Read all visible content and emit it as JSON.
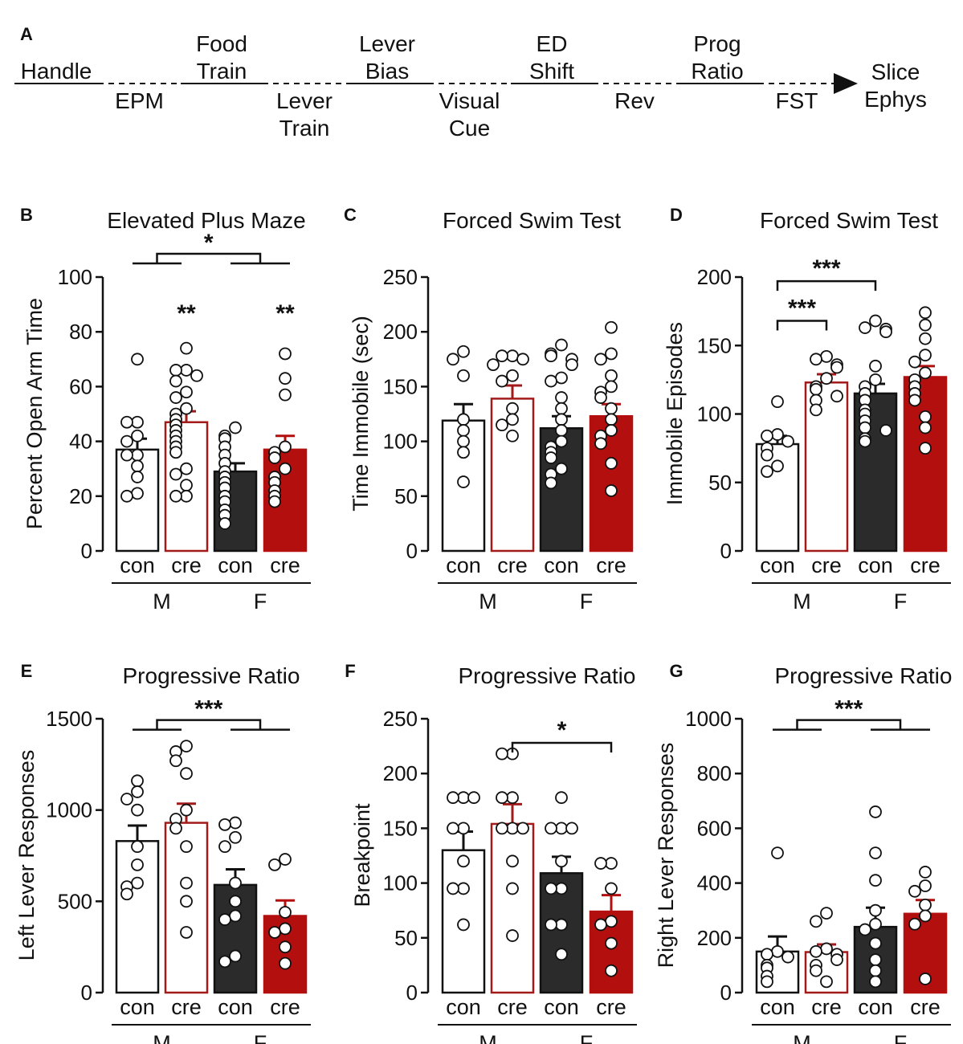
{
  "colors": {
    "ink": "#111111",
    "male_con_fill": "#ffffff",
    "male_cre_fill": "#ffffff",
    "male_cre_stroke": "#a31a1a",
    "female_con_fill": "#2b2b2b",
    "female_cre_fill": "#b30f0f"
  },
  "timeline": {
    "panel_label": "A",
    "top_steps": [
      {
        "lines": [
          "Handle"
        ]
      },
      {
        "lines": [
          "Food",
          "Train"
        ]
      },
      {
        "lines": [
          "Lever",
          "Bias"
        ]
      },
      {
        "lines": [
          "ED",
          "Shift"
        ]
      },
      {
        "lines": [
          "Prog",
          "Ratio"
        ]
      }
    ],
    "bottom_steps": [
      {
        "lines": [
          "EPM"
        ]
      },
      {
        "lines": [
          "Lever",
          "Train"
        ]
      },
      {
        "lines": [
          "Visual",
          "Cue"
        ]
      },
      {
        "lines": [
          "Rev"
        ]
      },
      {
        "lines": [
          "FST"
        ]
      }
    ],
    "final_step": {
      "lines": [
        "Slice",
        "Ephys"
      ]
    }
  },
  "chart_data": [
    {
      "panel_label": "B",
      "type": "bar",
      "title": "Elevated Plus Maze",
      "ylabel": "Percent Open Arm Time",
      "ylim": [
        0,
        100
      ],
      "yticks": [
        0,
        20,
        40,
        60,
        80,
        100
      ],
      "categories": [
        "con",
        "cre",
        "con",
        "cre"
      ],
      "groups": [
        "M",
        "F"
      ],
      "series": [
        {
          "name": "M con",
          "mean": 37,
          "sem": 4,
          "points": [
            70,
            47,
            47,
            42,
            40,
            35,
            35,
            31,
            27,
            21,
            20
          ]
        },
        {
          "name": "M cre",
          "mean": 47,
          "sem": 4,
          "points": [
            74,
            66,
            66,
            64,
            62,
            58,
            56,
            52,
            50,
            48,
            46,
            44,
            42,
            40,
            38,
            36,
            30,
            28,
            24,
            20,
            20
          ]
        },
        {
          "name": "F con",
          "mean": 29,
          "sem": 3,
          "points": [
            45,
            42,
            41,
            38,
            35,
            32,
            29,
            27,
            25,
            23,
            20,
            18,
            15,
            13,
            10
          ]
        },
        {
          "name": "F cre",
          "mean": 37,
          "sem": 5,
          "points": [
            72,
            63,
            57,
            38,
            36,
            34,
            30,
            27,
            25,
            22,
            20,
            18
          ]
        }
      ],
      "annotations": [
        {
          "kind": "group_bracket",
          "text": "*",
          "y": 105
        },
        {
          "kind": "star",
          "series": 1,
          "text": "**",
          "y": 88
        },
        {
          "kind": "star",
          "series": 3,
          "text": "**",
          "y": 88
        }
      ]
    },
    {
      "panel_label": "C",
      "type": "bar",
      "title": "Forced Swim Test",
      "ylabel": "Time Immobile (sec)",
      "ylim": [
        0,
        250
      ],
      "yticks": [
        0,
        50,
        100,
        150,
        200,
        250
      ],
      "categories": [
        "con",
        "cre",
        "con",
        "cre"
      ],
      "groups": [
        "M",
        "F"
      ],
      "series": [
        {
          "name": "M con",
          "mean": 119,
          "sem": 15,
          "points": [
            182,
            175,
            160,
            120,
            110,
            100,
            90,
            63
          ]
        },
        {
          "name": "M cre",
          "mean": 139,
          "sem": 12,
          "points": [
            178,
            178,
            175,
            170,
            160,
            155,
            130,
            120,
            115,
            105
          ]
        },
        {
          "name": "F con",
          "mean": 112,
          "sem": 11,
          "points": [
            188,
            180,
            178,
            175,
            170,
            158,
            155,
            140,
            130,
            120,
            110,
            100,
            95,
            90,
            85,
            75,
            70,
            62
          ]
        },
        {
          "name": "F cre",
          "mean": 123,
          "sem": 11,
          "points": [
            204,
            180,
            175,
            160,
            150,
            145,
            140,
            130,
            120,
            110,
            105,
            98,
            80,
            55
          ]
        }
      ],
      "annotations": []
    },
    {
      "panel_label": "D",
      "type": "bar",
      "title": "Forced Swim Test",
      "ylabel": "Immobile Episodes",
      "ylim": [
        0,
        200
      ],
      "yticks": [
        0,
        50,
        100,
        150,
        200
      ],
      "categories": [
        "con",
        "cre",
        "con",
        "cre"
      ],
      "groups": [
        "M",
        "F"
      ],
      "series": [
        {
          "name": "M con",
          "mean": 78,
          "sem": 6,
          "points": [
            109,
            85,
            84,
            80,
            75,
            70,
            62,
            58
          ]
        },
        {
          "name": "M cre",
          "mean": 123,
          "sem": 6,
          "points": [
            142,
            140,
            136,
            134,
            126,
            120,
            118,
            113,
            110,
            103
          ]
        },
        {
          "name": "F con",
          "mean": 115,
          "sem": 7,
          "points": [
            168,
            163,
            162,
            160,
            135,
            125,
            120,
            115,
            110,
            103,
            100,
            95,
            90,
            88,
            82,
            80
          ]
        },
        {
          "name": "F cre",
          "mean": 127,
          "sem": 8,
          "points": [
            174,
            165,
            155,
            143,
            138,
            130,
            125,
            120,
            115,
            110,
            98,
            90,
            75
          ]
        }
      ],
      "annotations": [
        {
          "kind": "pair_bracket",
          "from": 0,
          "to": 2,
          "text": "***",
          "y": 197
        },
        {
          "kind": "pair_bracket",
          "from": 0,
          "to": 1,
          "text": "***",
          "y": 168
        }
      ]
    },
    {
      "panel_label": "E",
      "type": "bar",
      "title": "Progressive Ratio",
      "ylabel": "Left Lever Responses",
      "ylim": [
        0,
        1500
      ],
      "yticks": [
        0,
        500,
        1000,
        1500
      ],
      "categories": [
        "con",
        "cre",
        "con",
        "cre"
      ],
      "groups": [
        "M",
        "F"
      ],
      "series": [
        {
          "name": "M con",
          "mean": 830,
          "sem": 85,
          "points": [
            1160,
            1100,
            1060,
            1000,
            800,
            700,
            600,
            580,
            540
          ]
        },
        {
          "name": "M cre",
          "mean": 930,
          "sem": 105,
          "points": [
            1350,
            1320,
            1270,
            1200,
            1000,
            950,
            900,
            800,
            600,
            500,
            330
          ]
        },
        {
          "name": "F con",
          "mean": 590,
          "sem": 85,
          "points": [
            930,
            920,
            850,
            800,
            600,
            500,
            420,
            400,
            200,
            170
          ]
        },
        {
          "name": "F cre",
          "mean": 420,
          "sem": 85,
          "points": [
            730,
            700,
            440,
            350,
            330,
            250,
            160
          ]
        }
      ],
      "annotations": [
        {
          "kind": "group_bracket",
          "text": "***",
          "y": 1440
        }
      ]
    },
    {
      "panel_label": "F",
      "type": "bar",
      "title": "Progressive Ratio",
      "ylabel": "Breakpoint",
      "ylim": [
        0,
        250
      ],
      "yticks": [
        0,
        50,
        100,
        150,
        200,
        250
      ],
      "categories": [
        "con",
        "cre",
        "con",
        "cre"
      ],
      "groups": [
        "M",
        "F"
      ],
      "series": [
        {
          "name": "M con",
          "mean": 130,
          "sem": 17,
          "points": [
            178,
            178,
            178,
            150,
            150,
            120,
            95,
            95,
            62
          ]
        },
        {
          "name": "M cre",
          "mean": 154,
          "sem": 18,
          "points": [
            218,
            218,
            178,
            178,
            150,
            150,
            150,
            120,
            95,
            52
          ]
        },
        {
          "name": "F con",
          "mean": 109,
          "sem": 15,
          "points": [
            178,
            150,
            150,
            150,
            120,
            95,
            95,
            62,
            62,
            35
          ]
        },
        {
          "name": "F cre",
          "mean": 74,
          "sem": 15,
          "points": [
            118,
            118,
            95,
            65,
            62,
            45,
            20
          ]
        }
      ],
      "annotations": [
        {
          "kind": "pair_bracket",
          "from": 1,
          "to": 3,
          "text": "*",
          "y": 228
        }
      ]
    },
    {
      "panel_label": "G",
      "type": "bar",
      "title": "Progressive Ratio",
      "ylabel": "Right Lever Responses",
      "ylim": [
        0,
        1000
      ],
      "yticks": [
        0,
        200,
        400,
        600,
        800,
        1000
      ],
      "categories": [
        "con",
        "cre",
        "con",
        "cre"
      ],
      "groups": [
        "M",
        "F"
      ],
      "series": [
        {
          "name": "M con",
          "mean": 150,
          "sem": 55,
          "points": [
            510,
            150,
            140,
            130,
            100,
            90,
            60,
            40
          ]
        },
        {
          "name": "M cre",
          "mean": 148,
          "sem": 28,
          "points": [
            290,
            260,
            160,
            150,
            140,
            120,
            100,
            80,
            40
          ]
        },
        {
          "name": "F con",
          "mean": 240,
          "sem": 70,
          "points": [
            660,
            510,
            410,
            300,
            250,
            230,
            180,
            120,
            80,
            40
          ]
        },
        {
          "name": "F cre",
          "mean": 288,
          "sem": 50,
          "points": [
            440,
            390,
            370,
            320,
            280,
            250,
            50
          ]
        }
      ],
      "annotations": [
        {
          "kind": "group_bracket",
          "text": "***",
          "y": 960
        }
      ]
    }
  ]
}
